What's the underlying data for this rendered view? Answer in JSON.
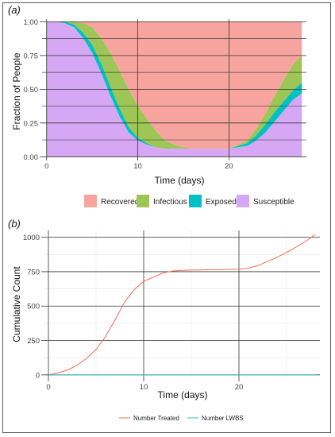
{
  "colors": {
    "recovered": "#f8a49e",
    "infectious": "#9dc656",
    "exposed": "#00c2c4",
    "susceptible": "#d6a7f4",
    "treated": "#f26b5b",
    "lwbs": "#35bfc4"
  },
  "chart_data": [
    {
      "panel_label": "(a)",
      "type": "area",
      "stacked": true,
      "xlabel": "Time (days)",
      "ylabel": "Fraction of People",
      "xlim": [
        -0.5,
        28.5
      ],
      "ylim": [
        -0.01,
        1.02
      ],
      "x_ticks": [
        0,
        10,
        20
      ],
      "y_ticks": [
        0.0,
        0.25,
        0.5,
        0.75,
        1.0
      ],
      "y_tick_labels": [
        "0.00",
        "0.25",
        "0.50",
        "0.75",
        "1.00"
      ],
      "grid": true,
      "legend_position": "bottom",
      "x": [
        0,
        1,
        2,
        3,
        4,
        5,
        6,
        7,
        8,
        9,
        10,
        11,
        12,
        13,
        14,
        15,
        16,
        17,
        18,
        19,
        20,
        21,
        22,
        23,
        24,
        25,
        26,
        27,
        28
      ],
      "series": [
        {
          "name": "Susceptible",
          "color_key": "susceptible",
          "values": [
            1.0,
            1.0,
            0.99,
            0.96,
            0.88,
            0.77,
            0.62,
            0.45,
            0.3,
            0.18,
            0.12,
            0.09,
            0.07,
            0.06,
            0.06,
            0.06,
            0.06,
            0.06,
            0.06,
            0.06,
            0.06,
            0.07,
            0.08,
            0.12,
            0.18,
            0.26,
            0.34,
            0.42,
            0.47
          ]
        },
        {
          "name": "Exposed",
          "color_key": "exposed",
          "values": [
            0.0,
            0.0,
            0.01,
            0.02,
            0.04,
            0.06,
            0.07,
            0.07,
            0.06,
            0.04,
            0.02,
            0.01,
            0.0,
            0.0,
            0.0,
            0.0,
            0.0,
            0.0,
            0.0,
            0.0,
            0.0,
            0.01,
            0.02,
            0.04,
            0.06,
            0.07,
            0.07,
            0.07,
            0.08
          ]
        },
        {
          "name": "Infectious",
          "color_key": "infectious",
          "values": [
            0.0,
            0.0,
            0.0,
            0.02,
            0.07,
            0.13,
            0.19,
            0.25,
            0.28,
            0.28,
            0.24,
            0.18,
            0.12,
            0.06,
            0.03,
            0.01,
            0.0,
            0.0,
            0.0,
            0.0,
            0.0,
            0.01,
            0.02,
            0.05,
            0.08,
            0.12,
            0.16,
            0.19,
            0.2
          ]
        },
        {
          "name": "Recovered",
          "color_key": "recovered",
          "values": [
            0.0,
            0.0,
            0.0,
            0.0,
            0.01,
            0.04,
            0.12,
            0.23,
            0.36,
            0.5,
            0.62,
            0.72,
            0.81,
            0.88,
            0.91,
            0.93,
            0.94,
            0.94,
            0.94,
            0.94,
            0.94,
            0.91,
            0.88,
            0.79,
            0.68,
            0.55,
            0.43,
            0.32,
            0.25
          ]
        }
      ],
      "legend_order": [
        "Recovered",
        "Infectious",
        "Exposed",
        "Susceptible"
      ]
    },
    {
      "panel_label": "(b)",
      "type": "line",
      "xlabel": "Time (days)",
      "ylabel": "Cumulative Count",
      "xlim": [
        -0.5,
        28.5
      ],
      "ylim": [
        -30,
        1050
      ],
      "x_ticks": [
        0,
        10,
        20
      ],
      "y_ticks": [
        0,
        250,
        500,
        750,
        1000
      ],
      "grid": true,
      "legend_position": "bottom",
      "series": [
        {
          "name": "Number Treated",
          "color_key": "treated",
          "x": [
            0,
            1,
            2,
            3,
            4,
            5,
            6,
            7,
            8,
            9,
            10,
            11,
            12,
            13,
            14,
            15,
            16,
            17,
            18,
            19,
            20,
            21,
            22,
            23,
            24,
            25,
            26,
            27,
            28
          ],
          "values": [
            0,
            15,
            35,
            70,
            120,
            185,
            280,
            400,
            530,
            620,
            680,
            710,
            740,
            755,
            760,
            762,
            763,
            764,
            765,
            766,
            768,
            775,
            795,
            825,
            855,
            890,
            930,
            970,
            1020
          ]
        },
        {
          "name": "Number LWBS",
          "color_key": "lwbs",
          "x": [
            0,
            28
          ],
          "values": [
            0,
            0
          ]
        }
      ]
    }
  ]
}
